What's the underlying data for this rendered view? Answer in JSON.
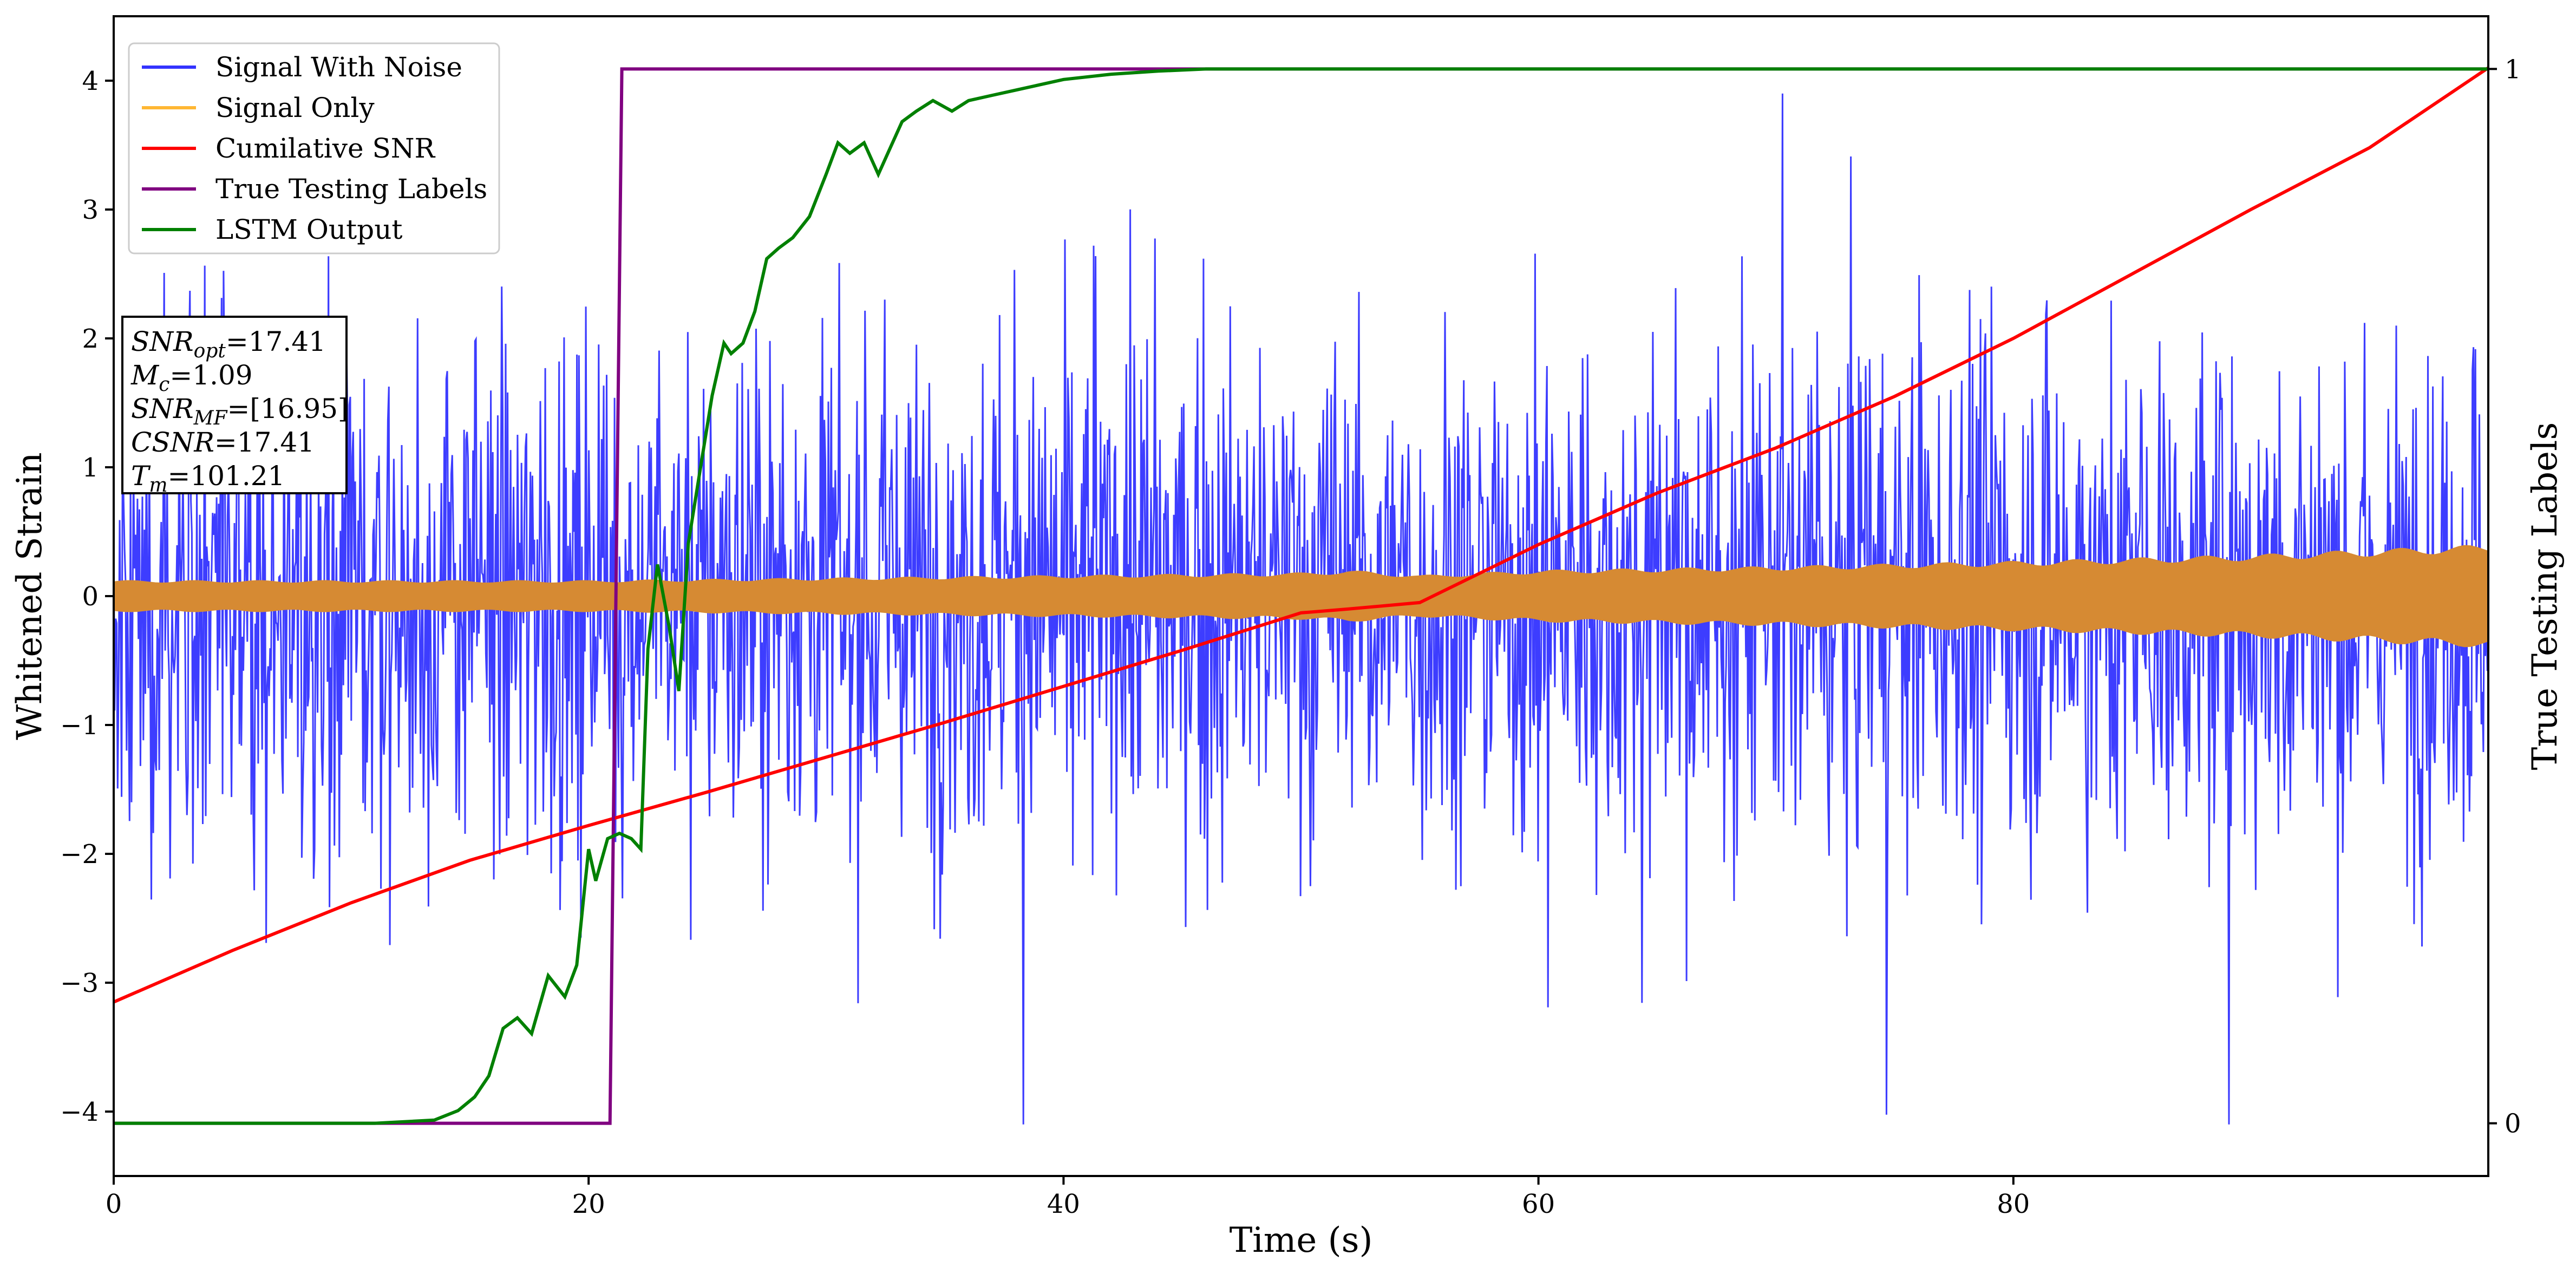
{
  "chart_data": {
    "type": "line",
    "xlabel": "Time (s)",
    "ylabel_left": "Whitened Strain",
    "ylabel_right": "True Testing Labels",
    "xlim": [
      0,
      100
    ],
    "ylim_left": [
      -4.5,
      4.5
    ],
    "ylim_right": [
      -0.05,
      1.05
    ],
    "x_ticks": [
      0,
      20,
      40,
      60,
      80
    ],
    "y_ticks_left": [
      -4,
      -3,
      -2,
      -1,
      0,
      1,
      2,
      3,
      4
    ],
    "y_ticks_right": [
      0,
      1
    ],
    "tick_labels_x": [
      "0",
      "20",
      "40",
      "60",
      "80"
    ],
    "tick_labels_y_left": [
      "−4",
      "−3",
      "−2",
      "−1",
      "0",
      "1",
      "2",
      "3",
      "4"
    ],
    "tick_labels_y_right": [
      "0",
      "1"
    ],
    "grid": false,
    "legend_position": "top-left",
    "legend": [
      {
        "label": "Signal With Noise",
        "color": "#3333ff"
      },
      {
        "label": "Signal Only",
        "color": "#ffb733"
      },
      {
        "label": "Cumilative SNR",
        "color": "#ff0000"
      },
      {
        "label": "True Testing Labels",
        "color": "#800080"
      },
      {
        "label": "LSTM Output",
        "color": "#008000"
      }
    ],
    "annotation": [
      {
        "sym": "SNR",
        "sub": "opt",
        "val": "=17.41"
      },
      {
        "sym": "M",
        "sub": "c",
        "val": "=1.09"
      },
      {
        "sym": "SNR",
        "sub": "MF",
        "val": "=[16.95]"
      },
      {
        "sym": "CSNR",
        "sub": "",
        "val": "=17.41"
      },
      {
        "sym": "T",
        "sub": "m",
        "val": "=101.21"
      }
    ],
    "series": [
      {
        "name": "Signal With Noise",
        "axis": "left",
        "color": "#3333ff",
        "envelope": {
          "typical_upper": 1.6,
          "typical_lower": -1.5,
          "max": 3.9,
          "min": -4.1
        }
      },
      {
        "name": "Signal Only",
        "axis": "left",
        "color": "#d68a33",
        "amplitude": {
          "x": [
            0,
            20,
            30,
            40,
            50,
            52,
            55,
            60,
            70,
            80,
            90,
            100
          ],
          "y": [
            0.12,
            0.12,
            0.14,
            0.16,
            0.18,
            0.2,
            0.16,
            0.2,
            0.23,
            0.27,
            0.32,
            0.4
          ]
        }
      },
      {
        "name": "Cumilative SNR",
        "axis": "left",
        "color": "#ff0000",
        "x": [
          0,
          5,
          10,
          15,
          20,
          25,
          30,
          35,
          40,
          45,
          50,
          52,
          55,
          60,
          65,
          70,
          75,
          80,
          85,
          90,
          95,
          100
        ],
        "y": [
          -3.15,
          -2.75,
          -2.38,
          -2.05,
          -1.78,
          -1.52,
          -1.25,
          -0.98,
          -0.7,
          -0.42,
          -0.13,
          -0.1,
          -0.05,
          0.4,
          0.8,
          1.15,
          1.55,
          2.0,
          2.5,
          3.0,
          3.48,
          4.1
        ]
      },
      {
        "name": "True Testing Labels",
        "axis": "right",
        "color": "#800080",
        "x": [
          0,
          20.9,
          21.4,
          100
        ],
        "y": [
          0,
          0,
          1,
          1
        ]
      },
      {
        "name": "LSTM Output",
        "axis": "right",
        "color": "#008000",
        "x": [
          0,
          11,
          13.5,
          14.5,
          15.2,
          15.8,
          16.4,
          17,
          17.6,
          18.3,
          19,
          19.5,
          20,
          20.3,
          20.8,
          21.3,
          21.8,
          22.2,
          22.5,
          22.9,
          23.4,
          23.8,
          24.2,
          24.7,
          25.2,
          25.7,
          26,
          26.5,
          27,
          27.5,
          28,
          28.6,
          29.3,
          30,
          30.5,
          31,
          31.6,
          32.2,
          32.6,
          33.2,
          33.8,
          34.5,
          35.3,
          36,
          37,
          38,
          39,
          40,
          42,
          44,
          46,
          48,
          100
        ],
        "y": [
          0,
          0,
          0.003,
          0.012,
          0.025,
          0.045,
          0.09,
          0.1,
          0.085,
          0.14,
          0.12,
          0.15,
          0.26,
          0.23,
          0.27,
          0.275,
          0.27,
          0.26,
          0.45,
          0.53,
          0.47,
          0.41,
          0.55,
          0.62,
          0.69,
          0.74,
          0.73,
          0.74,
          0.77,
          0.82,
          0.83,
          0.84,
          0.86,
          0.9,
          0.93,
          0.92,
          0.93,
          0.9,
          0.92,
          0.95,
          0.96,
          0.97,
          0.96,
          0.97,
          0.975,
          0.98,
          0.985,
          0.99,
          0.995,
          0.998,
          1.0,
          1.0,
          1.0
        ]
      }
    ]
  }
}
